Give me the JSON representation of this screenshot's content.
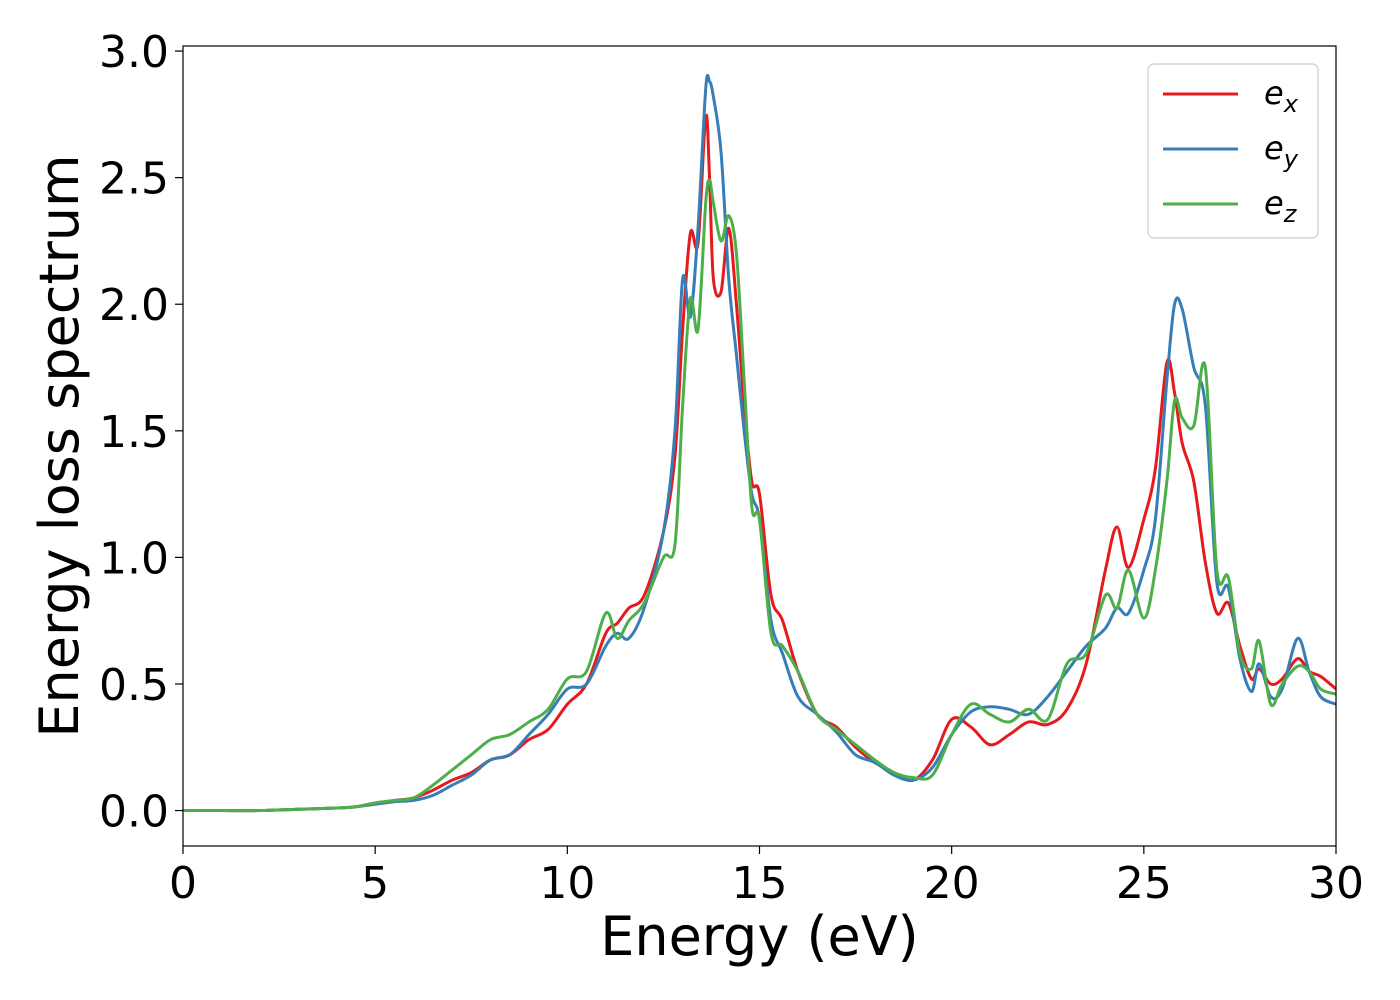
{
  "chart_data": {
    "type": "line",
    "xlabel": "Energy (eV)",
    "ylabel": "Energy loss spectrum",
    "xlim": [
      0,
      30
    ],
    "ylim": [
      -0.14,
      3.02
    ],
    "xticks": [
      "0",
      "5",
      "10",
      "15",
      "20",
      "25",
      "30"
    ],
    "yticks": [
      "0.0",
      "0.5",
      "1.0",
      "1.5",
      "2.0",
      "2.5",
      "3.0"
    ],
    "grid": false,
    "legend_position": "top-right",
    "x": [
      0,
      1,
      2,
      3,
      4,
      4.5,
      5,
      5.5,
      6,
      6.5,
      7,
      7.5,
      8,
      8.5,
      9,
      9.5,
      10,
      10.5,
      11,
      11.3,
      11.6,
      12,
      12.5,
      12.8,
      13,
      13.2,
      13.4,
      13.6,
      13.7,
      13.8,
      14,
      14.2,
      14.4,
      14.6,
      14.8,
      15,
      15.3,
      15.6,
      16,
      16.5,
      17,
      17.5,
      18,
      18.5,
      19,
      19.5,
      20,
      20.5,
      21,
      21.5,
      22,
      22.5,
      23,
      23.5,
      24,
      24.3,
      24.6,
      25,
      25.3,
      25.6,
      25.8,
      26,
      26.3,
      26.6,
      26.9,
      27.2,
      27.5,
      27.8,
      28,
      28.3,
      28.6,
      29,
      29.3,
      29.6,
      30
    ],
    "series": [
      {
        "name": "e",
        "subscript": "x",
        "color": "#e41a1c",
        "values": [
          0,
          0,
          0,
          0.005,
          0.01,
          0.015,
          0.03,
          0.04,
          0.05,
          0.08,
          0.12,
          0.15,
          0.2,
          0.22,
          0.28,
          0.32,
          0.42,
          0.5,
          0.7,
          0.74,
          0.8,
          0.85,
          1.1,
          1.4,
          1.9,
          2.28,
          2.24,
          2.74,
          2.5,
          2.1,
          2.05,
          2.3,
          2.0,
          1.6,
          1.3,
          1.25,
          0.85,
          0.75,
          0.55,
          0.38,
          0.33,
          0.25,
          0.19,
          0.15,
          0.12,
          0.2,
          0.36,
          0.33,
          0.26,
          0.3,
          0.35,
          0.34,
          0.4,
          0.58,
          0.95,
          1.12,
          0.96,
          1.15,
          1.35,
          1.77,
          1.65,
          1.45,
          1.3,
          0.98,
          0.78,
          0.82,
          0.65,
          0.52,
          0.56,
          0.5,
          0.52,
          0.6,
          0.55,
          0.53,
          0.48
        ]
      },
      {
        "name": "e",
        "subscript": "y",
        "color": "#377eb8",
        "values": [
          0,
          0,
          0,
          0.005,
          0.01,
          0.015,
          0.025,
          0.035,
          0.04,
          0.06,
          0.1,
          0.14,
          0.2,
          0.22,
          0.3,
          0.38,
          0.48,
          0.5,
          0.65,
          0.7,
          0.68,
          0.8,
          1.1,
          1.5,
          2.1,
          1.95,
          2.3,
          2.85,
          2.88,
          2.82,
          2.6,
          2.1,
          1.8,
          1.5,
          1.25,
          1.15,
          0.75,
          0.62,
          0.45,
          0.38,
          0.31,
          0.22,
          0.19,
          0.14,
          0.12,
          0.17,
          0.3,
          0.39,
          0.41,
          0.4,
          0.38,
          0.45,
          0.55,
          0.65,
          0.72,
          0.8,
          0.78,
          0.95,
          1.15,
          1.7,
          2.0,
          1.98,
          1.75,
          1.6,
          0.9,
          0.88,
          0.6,
          0.47,
          0.58,
          0.45,
          0.48,
          0.68,
          0.55,
          0.45,
          0.42
        ]
      },
      {
        "name": "e",
        "subscript": "z",
        "color": "#4daf4a",
        "values": [
          0,
          0,
          0,
          0.005,
          0.01,
          0.015,
          0.03,
          0.04,
          0.05,
          0.1,
          0.16,
          0.22,
          0.28,
          0.3,
          0.35,
          0.4,
          0.52,
          0.55,
          0.78,
          0.68,
          0.75,
          0.82,
          1.0,
          1.05,
          1.6,
          2.02,
          1.9,
          2.4,
          2.49,
          2.4,
          2.25,
          2.35,
          2.2,
          1.7,
          1.2,
          1.15,
          0.7,
          0.65,
          0.55,
          0.38,
          0.32,
          0.26,
          0.2,
          0.15,
          0.13,
          0.14,
          0.3,
          0.42,
          0.38,
          0.35,
          0.4,
          0.36,
          0.58,
          0.62,
          0.85,
          0.8,
          0.95,
          0.76,
          0.95,
          1.3,
          1.62,
          1.55,
          1.52,
          1.75,
          0.95,
          0.92,
          0.62,
          0.56,
          0.67,
          0.42,
          0.5,
          0.57,
          0.55,
          0.48,
          0.46
        ]
      }
    ]
  }
}
